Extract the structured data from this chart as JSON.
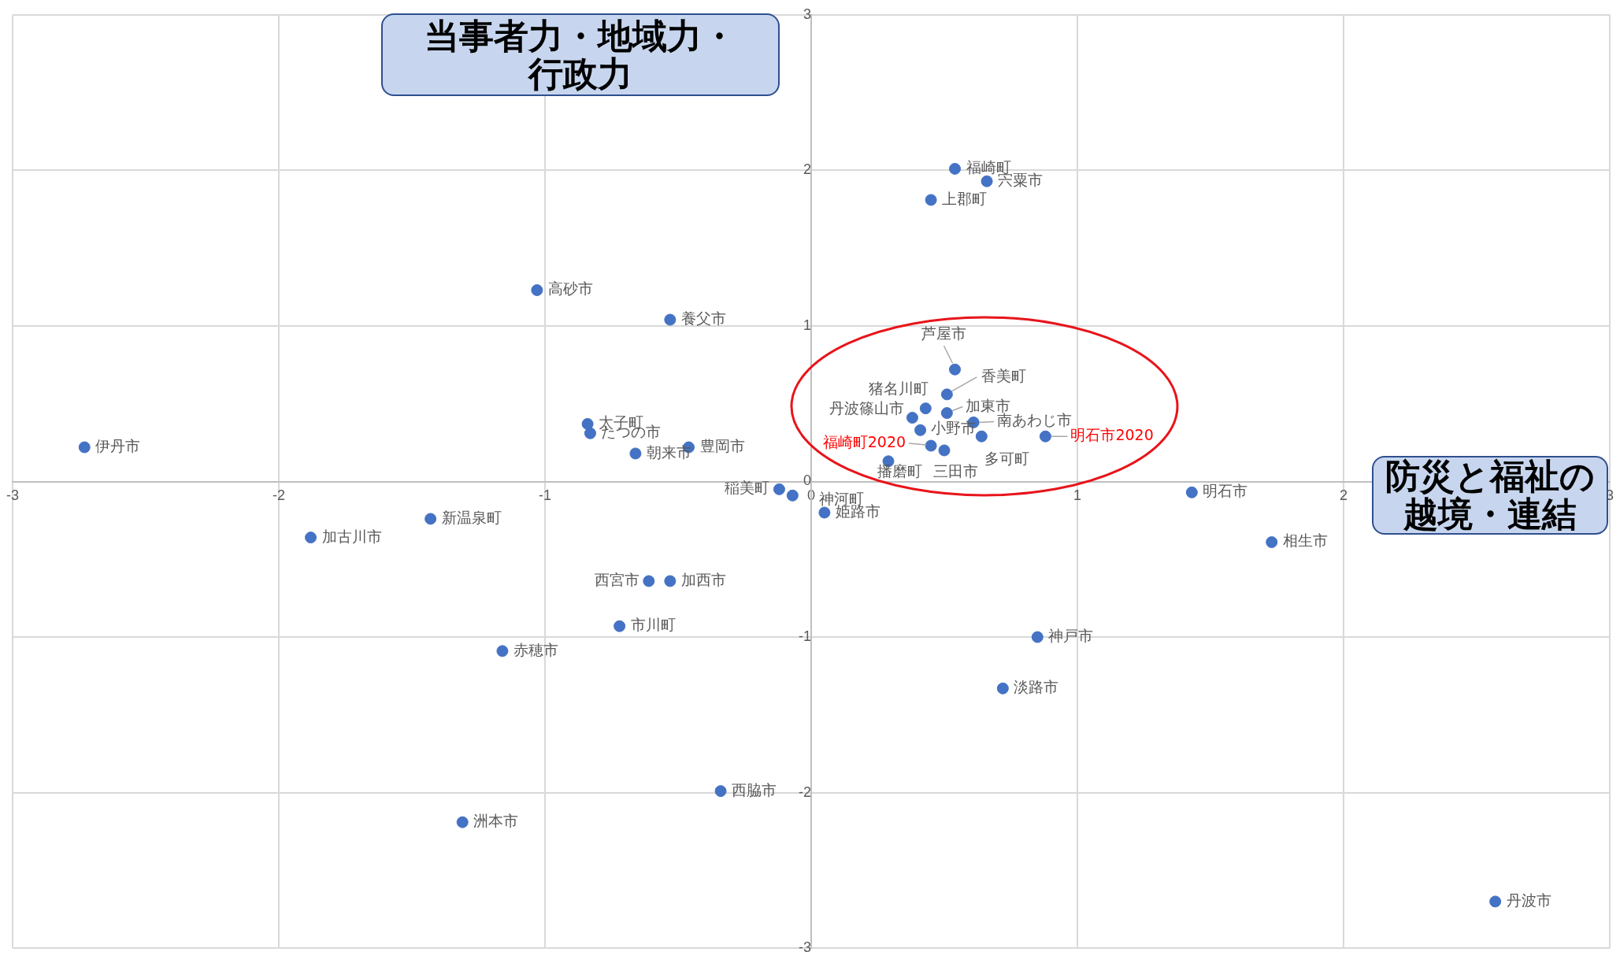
{
  "chart_data": {
    "type": "scatter",
    "xlabel": "防災と福祉の越境・連結",
    "ylabel": "当事者力・地域力・行政力",
    "xlim": [
      -3,
      3
    ],
    "ylim": [
      -3,
      3
    ],
    "xticks": [
      -3,
      -2,
      -1,
      0,
      1,
      2,
      3
    ],
    "yticks": [
      -3,
      -2,
      -1,
      0,
      1,
      2,
      3
    ],
    "grid": true,
    "legend": false,
    "marker": "circle",
    "series": [
      {
        "color": "#4472c4",
        "x": [
          -2.73,
          -1.03,
          -0.53,
          -0.84,
          -0.83,
          -0.66,
          -0.46,
          -1.43,
          -1.88,
          -0.61,
          -0.53,
          -0.72,
          -1.16,
          -1.31,
          -0.34,
          -0.12,
          -0.07,
          0.05,
          1.43,
          1.73,
          0.85,
          0.72,
          2.57,
          0.54,
          0.66,
          0.45,
          0.54,
          0.51,
          0.43,
          0.51,
          0.38,
          0.61,
          0.41,
          0.64,
          0.5,
          0.29
        ],
        "values": [
          0.22,
          1.23,
          1.04,
          0.37,
          0.31,
          0.18,
          0.22,
          -0.24,
          -0.36,
          -0.64,
          -0.64,
          -0.93,
          -1.09,
          -2.19,
          -1.99,
          -0.05,
          -0.09,
          -0.2,
          -0.07,
          -0.39,
          -1.0,
          -1.33,
          -2.7,
          2.01,
          1.93,
          1.81,
          0.72,
          0.56,
          0.47,
          0.44,
          0.41,
          0.38,
          0.33,
          0.29,
          0.2,
          0.13
        ]
      },
      {
        "color": "#4472c4",
        "x": [
          0.45,
          0.88
        ],
        "values": [
          0.23,
          0.29
        ]
      }
    ],
    "annotations": [
      {
        "text": "伊丹市",
        "x": -2.73,
        "y": 0.22
      },
      {
        "text": "高砂市",
        "x": -1.03,
        "y": 1.23
      },
      {
        "text": "養父市",
        "x": -0.53,
        "y": 1.04
      },
      {
        "text": "太子町",
        "x": -0.84,
        "y": 0.37
      },
      {
        "text": "たつの市",
        "x": -0.83,
        "y": 0.31
      },
      {
        "text": "朝来市",
        "x": -0.66,
        "y": 0.18
      },
      {
        "text": "豊岡市",
        "x": -0.46,
        "y": 0.22
      },
      {
        "text": "新温泉町",
        "x": -1.43,
        "y": -0.24
      },
      {
        "text": "加古川市",
        "x": -1.88,
        "y": -0.36
      },
      {
        "text": "西宮市",
        "x": -0.61,
        "y": -0.64
      },
      {
        "text": "加西市",
        "x": -0.53,
        "y": -0.64
      },
      {
        "text": "市川町",
        "x": -0.72,
        "y": -0.93
      },
      {
        "text": "赤穂市",
        "x": -1.16,
        "y": -1.09
      },
      {
        "text": "洲本市",
        "x": -1.31,
        "y": -2.19
      },
      {
        "text": "西脇市",
        "x": -0.34,
        "y": -1.99
      },
      {
        "text": "稲美町",
        "x": -0.12,
        "y": -0.05
      },
      {
        "text": "神河町",
        "x": -0.07,
        "y": -0.09
      },
      {
        "text": "姫路市",
        "x": 0.05,
        "y": -0.2
      },
      {
        "text": "明石市",
        "x": 1.43,
        "y": -0.07
      },
      {
        "text": "相生市",
        "x": 1.73,
        "y": -0.39
      },
      {
        "text": "神戸市",
        "x": 0.85,
        "y": -1.0
      },
      {
        "text": "淡路市",
        "x": 0.72,
        "y": -1.33
      },
      {
        "text": "丹波市",
        "x": 2.57,
        "y": -2.7
      },
      {
        "text": "福崎町",
        "x": 0.54,
        "y": 2.01
      },
      {
        "text": "宍粟市",
        "x": 0.66,
        "y": 1.93
      },
      {
        "text": "上郡町",
        "x": 0.45,
        "y": 1.81
      },
      {
        "text": "芦屋市",
        "x": 0.54,
        "y": 0.72
      },
      {
        "text": "香美町",
        "x": 0.51,
        "y": 0.56
      },
      {
        "text": "猪名川町",
        "x": 0.43,
        "y": 0.47
      },
      {
        "text": "加東市",
        "x": 0.51,
        "y": 0.44
      },
      {
        "text": "丹波篠山市",
        "x": 0.38,
        "y": 0.41
      },
      {
        "text": "南あわじ市",
        "x": 0.61,
        "y": 0.38
      },
      {
        "text": "小野市",
        "x": 0.41,
        "y": 0.33
      },
      {
        "text": "多可町",
        "x": 0.64,
        "y": 0.29
      },
      {
        "text": "三田市",
        "x": 0.5,
        "y": 0.2
      },
      {
        "text": "播磨町",
        "x": 0.29,
        "y": 0.13
      },
      {
        "text": "福崎町2020",
        "x": 0.45,
        "y": 0.23
      },
      {
        "text": "明石市2020",
        "x": 0.88,
        "y": 0.29
      }
    ]
  }
}
